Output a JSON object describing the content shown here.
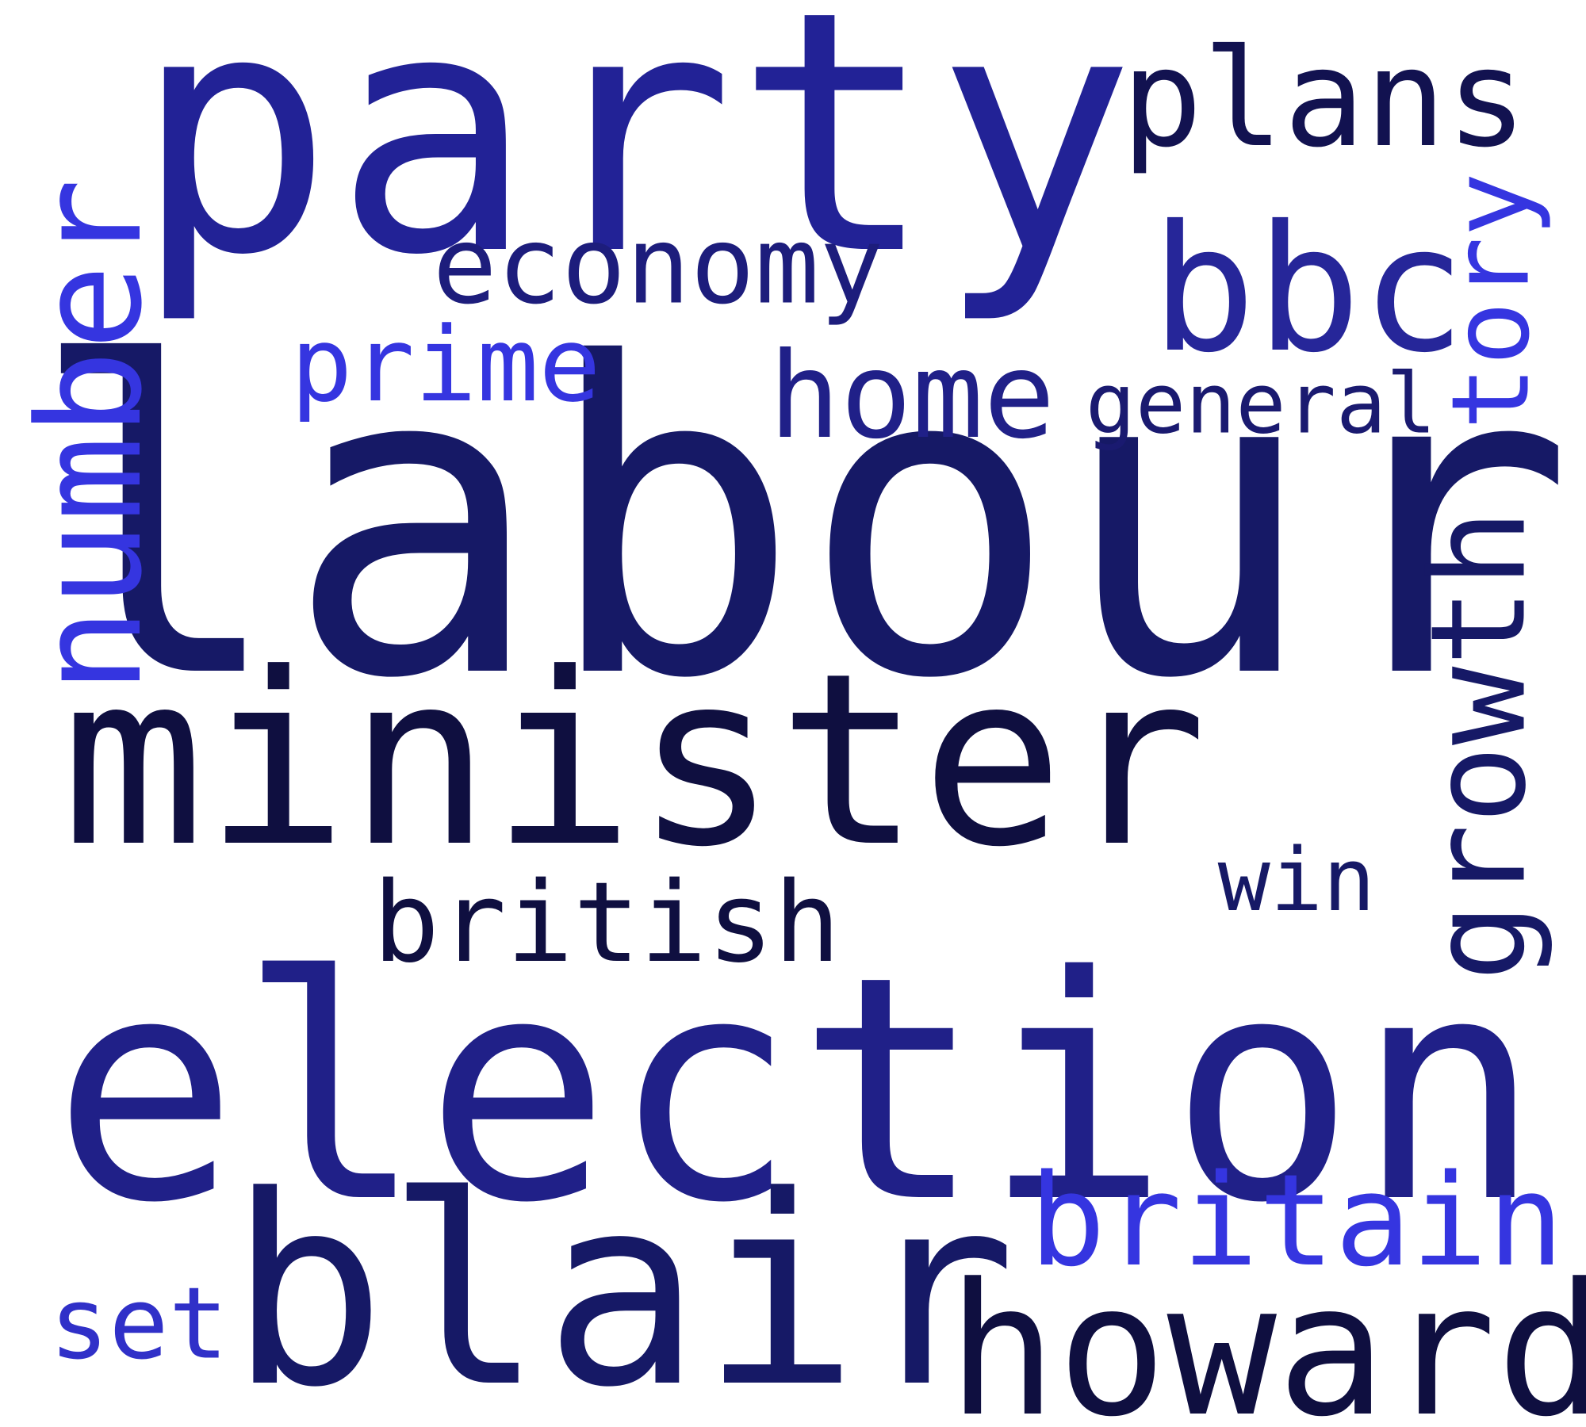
{
  "words": [
    {
      "text": "labour",
      "color": "#161966"
    },
    {
      "text": "party",
      "color": "#222296"
    },
    {
      "text": "minister",
      "color": "#0f0f40"
    },
    {
      "text": "election",
      "color": "#202088"
    },
    {
      "text": "blair",
      "color": "#161966"
    },
    {
      "text": "howard",
      "color": "#0f0f40"
    },
    {
      "text": "plans",
      "color": "#121250"
    },
    {
      "text": "number",
      "color": "#3535e0"
    },
    {
      "text": "economy",
      "color": "#1d1d7c"
    },
    {
      "text": "bbc",
      "color": "#262699"
    },
    {
      "text": "tory",
      "color": "#3535e0"
    },
    {
      "text": "prime",
      "color": "#3535e0"
    },
    {
      "text": "home",
      "color": "#202088"
    },
    {
      "text": "general",
      "color": "#1a1a70"
    },
    {
      "text": "growth",
      "color": "#161966"
    },
    {
      "text": "win",
      "color": "#161966"
    },
    {
      "text": "british",
      "color": "#0f0f40"
    },
    {
      "text": "britain",
      "color": "#3535e0"
    },
    {
      "text": "set",
      "color": "#3030c8"
    }
  ]
}
